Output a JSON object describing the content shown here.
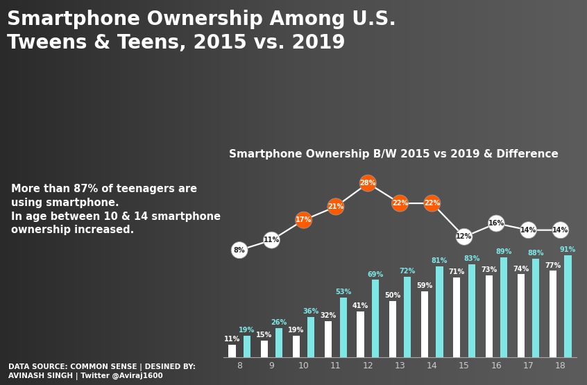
{
  "chart_data": {
    "type": "bar",
    "title": "Smartphone Ownership Among U.S. Tweens & Teens, 2015 vs. 2019",
    "subtitle": "Smartphone Ownership B/W 2015 vs 2019 & Difference",
    "annotations": [
      "More than 87% of teenagers are using smartphone.",
      "In age between 10 & 14 smartphone ownership increased."
    ],
    "source": "DATA SOURCE: COMMON SENSE | DESINED BY: AVINASH SINGH | Twitter @Aviraj1600",
    "categories": [
      "8",
      "9",
      "10",
      "11",
      "12",
      "13",
      "14",
      "15",
      "16",
      "17",
      "18"
    ],
    "series": [
      {
        "name": "2015",
        "color": "#ffffff",
        "values": [
          11,
          15,
          19,
          32,
          41,
          50,
          59,
          71,
          73,
          74,
          77
        ],
        "value_labels": [
          "11%",
          "15%",
          "19%",
          "32%",
          "41%",
          "50%",
          "59%",
          "71%",
          "73%",
          "74%",
          "77%"
        ]
      },
      {
        "name": "2019",
        "color": "#7fe6e6",
        "values": [
          19,
          26,
          36,
          53,
          69,
          72,
          81,
          83,
          89,
          88,
          91
        ],
        "value_labels": [
          "19%",
          "26%",
          "36%",
          "53%",
          "69%",
          "72%",
          "81%",
          "83%",
          "89%",
          "88%",
          "91%"
        ]
      },
      {
        "name": "Difference",
        "type": "line",
        "axis": "y2",
        "color": "#ffffff",
        "marker": "o",
        "colors": [
          "#ffffff",
          "#ffffff",
          "#ff5a00",
          "#ff5a00",
          "#ff5a00",
          "#ff5a00",
          "#ff5a00",
          "#ffffff",
          "#ffffff",
          "#ffffff",
          "#ffffff"
        ],
        "values": [
          8,
          11,
          17,
          21,
          28,
          22,
          22,
          12,
          16,
          14,
          14
        ],
        "value_labels": [
          "8%",
          "11%",
          "17%",
          "21%",
          "28%",
          "22%",
          "22%",
          "12%",
          "16%",
          "14%",
          "14%"
        ]
      }
    ],
    "ylim": [
      0,
      170
    ],
    "y2lim": [
      -24,
      33
    ],
    "data_labels": true,
    "tick_labels": "x"
  }
}
